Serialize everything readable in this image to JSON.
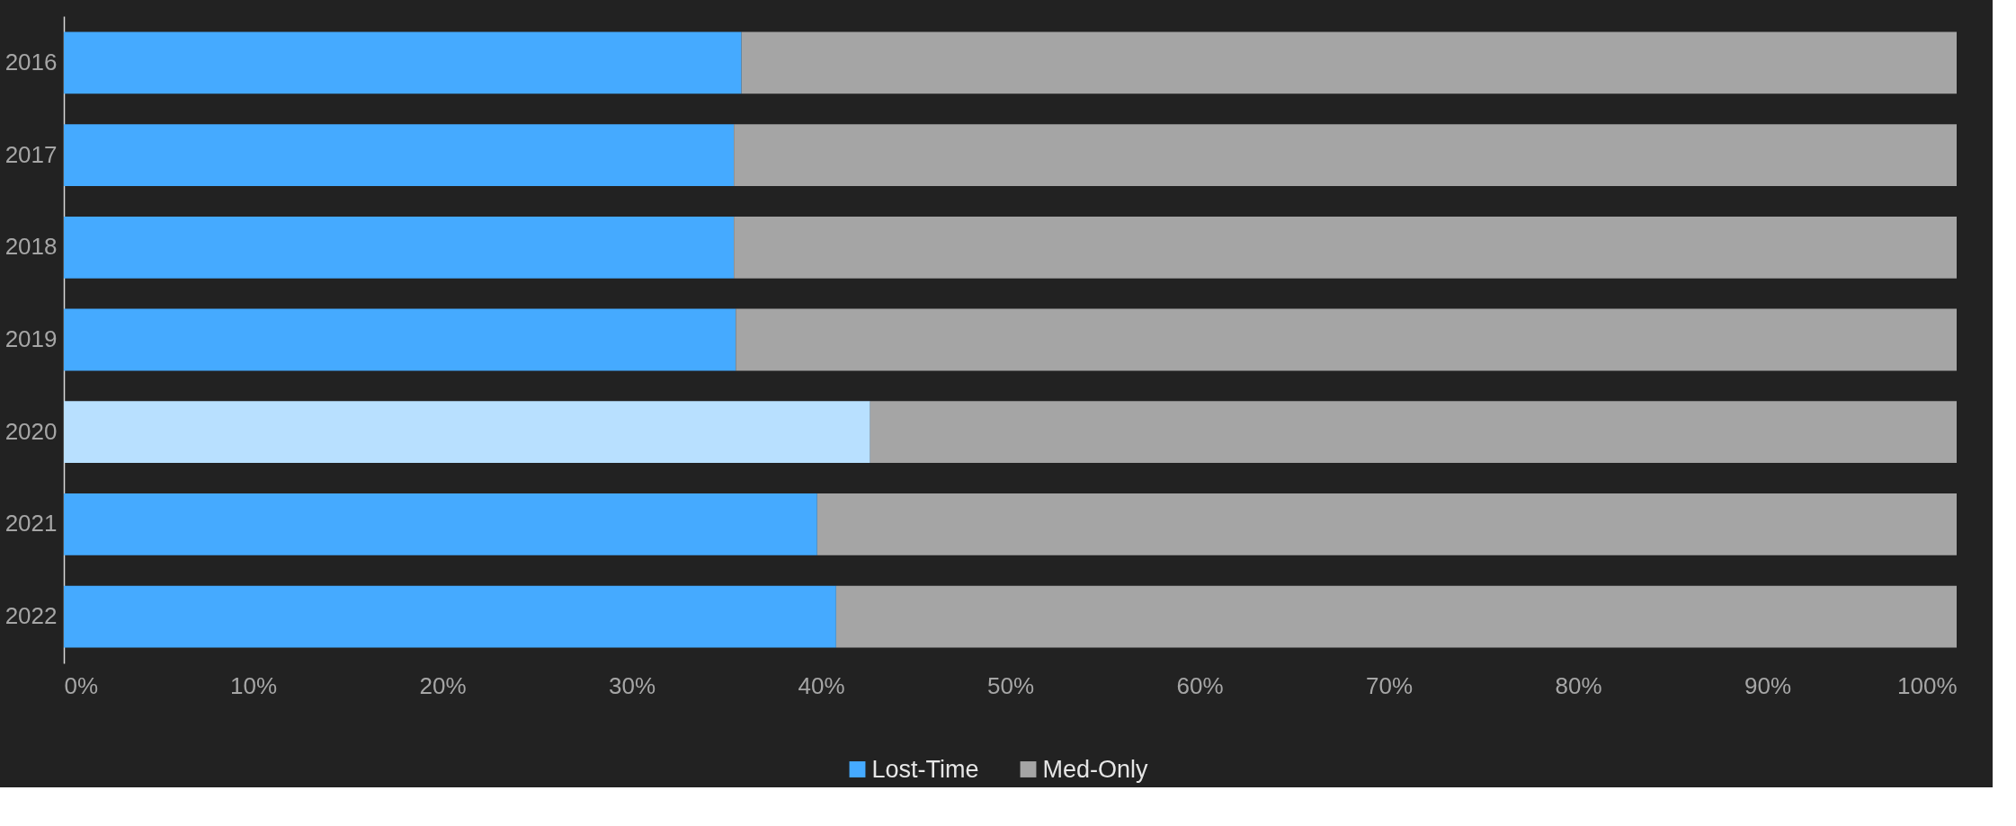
{
  "chart_data": {
    "type": "bar",
    "orientation": "horizontal",
    "stacked": true,
    "categories": [
      "2016",
      "2017",
      "2018",
      "2019",
      "2020",
      "2021",
      "2022"
    ],
    "series": [
      {
        "name": "Lost-Time",
        "color": "#45aaff",
        "colors": [
          "#45aaff",
          "#45aaff",
          "#45aaff",
          "#45aaff",
          "#b8e0ff",
          "#45aaff",
          "#45aaff"
        ],
        "values": [
          35.8,
          35.4,
          35.4,
          35.5,
          42.6,
          39.8,
          40.8
        ]
      },
      {
        "name": "Med-Only",
        "color": "#a5a5a5",
        "values": [
          64.2,
          64.6,
          64.6,
          64.5,
          57.4,
          60.2,
          59.2
        ]
      }
    ],
    "xlim": [
      0,
      100
    ],
    "xticks": [
      {
        "value": 0,
        "label": "0%"
      },
      {
        "value": 10,
        "label": "10%"
      },
      {
        "value": 20,
        "label": "20%"
      },
      {
        "value": 30,
        "label": "30%"
      },
      {
        "value": 40,
        "label": "40%"
      },
      {
        "value": 50,
        "label": "50%"
      },
      {
        "value": 60,
        "label": "60%"
      },
      {
        "value": 70,
        "label": "70%"
      },
      {
        "value": 80,
        "label": "80%"
      },
      {
        "value": 90,
        "label": "90%"
      },
      {
        "value": 100,
        "label": "100%"
      }
    ],
    "grid": false,
    "legend": "bottom"
  }
}
